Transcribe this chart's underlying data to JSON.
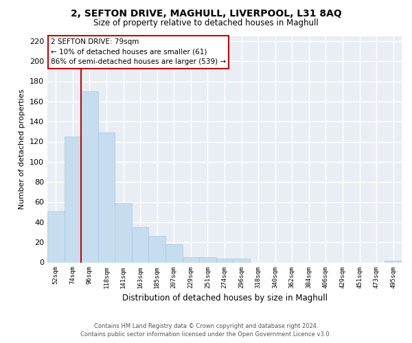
{
  "title": "2, SEFTON DRIVE, MAGHULL, LIVERPOOL, L31 8AQ",
  "subtitle": "Size of property relative to detached houses in Maghull",
  "xlabel": "Distribution of detached houses by size in Maghull",
  "ylabel": "Number of detached properties",
  "bar_color": "#c6ddef",
  "bar_edge_color": "#a8c8e0",
  "vline_color": "#cc0000",
  "vline_x": 1.5,
  "bar_heights": [
    51,
    125,
    170,
    129,
    59,
    35,
    26,
    18,
    5,
    5,
    4,
    4,
    0,
    0,
    0,
    0,
    0,
    0,
    0,
    0,
    2
  ],
  "bin_labels": [
    "52sqm",
    "74sqm",
    "96sqm",
    "118sqm",
    "141sqm",
    "163sqm",
    "185sqm",
    "207sqm",
    "229sqm",
    "251sqm",
    "274sqm",
    "296sqm",
    "318sqm",
    "340sqm",
    "362sqm",
    "384sqm",
    "406sqm",
    "429sqm",
    "451sqm",
    "473sqm",
    "495sqm"
  ],
  "ylim": [
    0,
    225
  ],
  "yticks": [
    0,
    20,
    40,
    60,
    80,
    100,
    120,
    140,
    160,
    180,
    200,
    220
  ],
  "annotation_title": "2 SEFTON DRIVE: 79sqm",
  "annotation_line1": "← 10% of detached houses are smaller (61)",
  "annotation_line2": "86% of semi-detached houses are larger (539) →",
  "background_color": "#e8eef4",
  "footer_line1": "Contains HM Land Registry data © Crown copyright and database right 2024.",
  "footer_line2": "Contains public sector information licensed under the Open Government Licence v3.0."
}
